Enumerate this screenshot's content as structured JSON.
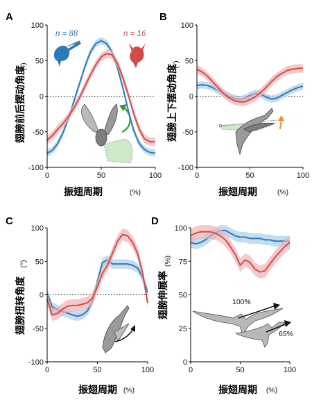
{
  "colors": {
    "hummingbird": "#2b7bb9",
    "hummingbird_band": "#a9cde8",
    "sunbird": "#d24b4b",
    "sunbird_band": "#f0b2b2",
    "arrow_green": "#2e9a2e",
    "arrow_orange": "#f08c2a",
    "illustration_gray": "#9a9a9a"
  },
  "chart_data": [
    {
      "id": "A",
      "panel_label": "A",
      "type": "line",
      "ylabel": "翅膀前后摆动角度",
      "yunit": "(°)",
      "xlabel": "振翅周期",
      "xunit": "(%)",
      "xlim": [
        0,
        100
      ],
      "ylim": [
        -100,
        100
      ],
      "xticks": [
        "0",
        "50",
        "100"
      ],
      "yticks": [
        "100",
        "50",
        "0",
        "-50",
        "-100"
      ],
      "zero_line": true,
      "legend": [
        "n = 88",
        "n = 16"
      ],
      "icons": [
        "hummingbird-icon",
        "sunbird-icon",
        "wing-stroke-illustration"
      ],
      "x": [
        0,
        5,
        10,
        15,
        20,
        25,
        30,
        35,
        40,
        45,
        50,
        55,
        60,
        65,
        70,
        75,
        80,
        85,
        90,
        95,
        100
      ],
      "series": [
        {
          "color": "blue",
          "band": 5,
          "values": [
            -80,
            -76,
            -66,
            -50,
            -30,
            -6,
            18,
            42,
            62,
            74,
            78,
            74,
            62,
            40,
            12,
            -20,
            -48,
            -66,
            -75,
            -79,
            -80
          ]
        },
        {
          "color": "red",
          "band": 6,
          "values": [
            -62,
            -55,
            -46,
            -38,
            -28,
            -16,
            -2,
            14,
            30,
            44,
            55,
            60,
            58,
            46,
            26,
            2,
            -24,
            -46,
            -60,
            -64,
            -64
          ]
        }
      ]
    },
    {
      "id": "B",
      "panel_label": "B",
      "type": "line",
      "ylabel": "翅膀上下摆动角度",
      "yunit": "(°)",
      "xlabel": "振翅周期",
      "xunit": "(%)",
      "xlim": [
        0,
        100
      ],
      "ylim": [
        -100,
        100
      ],
      "xticks": [
        "0",
        "50",
        "100"
      ],
      "yticks": [
        "100",
        "50",
        "0",
        "-50",
        "-100"
      ],
      "zero_line": true,
      "icons": [
        "elevation-illustration"
      ],
      "x": [
        0,
        5,
        10,
        15,
        20,
        25,
        30,
        35,
        40,
        45,
        50,
        55,
        60,
        65,
        70,
        75,
        80,
        85,
        90,
        95,
        100
      ],
      "series": [
        {
          "color": "blue",
          "band": 5,
          "values": [
            15,
            16,
            15,
            12,
            8,
            4,
            0,
            -3,
            -5,
            -3,
            1,
            4,
            3,
            -1,
            -4,
            -3,
            1,
            5,
            9,
            12,
            14
          ]
        },
        {
          "color": "red",
          "band": 6,
          "values": [
            38,
            34,
            28,
            20,
            12,
            4,
            -2,
            -6,
            -8,
            -8,
            -5,
            -1,
            5,
            12,
            20,
            27,
            32,
            36,
            38,
            39,
            39
          ]
        }
      ]
    },
    {
      "id": "C",
      "panel_label": "C",
      "type": "line",
      "ylabel": "翅膀扭转角度",
      "yunit": "(°)",
      "xlabel": "振翅周期",
      "xunit": "(%)",
      "xlim": [
        0,
        100
      ],
      "ylim": [
        -100,
        100
      ],
      "xticks": [
        "0",
        "50",
        "100"
      ],
      "yticks": [
        "100",
        "50",
        "0",
        "-50",
        "-100"
      ],
      "zero_line": true,
      "icons": [
        "twist-illustration"
      ],
      "x": [
        0,
        5,
        10,
        15,
        20,
        25,
        30,
        35,
        40,
        45,
        50,
        55,
        60,
        65,
        70,
        75,
        80,
        85,
        90,
        95,
        100
      ],
      "series": [
        {
          "color": "blue",
          "band": 7,
          "values": [
            2,
            -18,
            -22,
            -25,
            -27,
            -30,
            -32,
            -30,
            -24,
            -10,
            20,
            48,
            52,
            46,
            46,
            46,
            46,
            44,
            40,
            26,
            4
          ]
        },
        {
          "color": "red",
          "band": 9,
          "values": [
            -6,
            -30,
            -28,
            -22,
            -17,
            -16,
            -16,
            -14,
            -12,
            -5,
            12,
            32,
            44,
            62,
            80,
            90,
            88,
            78,
            62,
            32,
            -12
          ]
        }
      ]
    },
    {
      "id": "D",
      "panel_label": "D",
      "type": "line",
      "ylabel": "翅膀伸展率",
      "yunit": "(%)",
      "xlabel": "振翅周期",
      "xunit": "(%)",
      "xlim": [
        0,
        100
      ],
      "ylim": [
        0,
        100
      ],
      "xticks": [
        "0",
        "50",
        "100"
      ],
      "yticks": [
        "100",
        "75",
        "50",
        "25",
        "0"
      ],
      "zero_line": false,
      "annotations": [
        "100%",
        "65%"
      ],
      "icons": [
        "spread-wing-illustration",
        "folded-wing-illustration"
      ],
      "x": [
        0,
        5,
        10,
        15,
        20,
        25,
        30,
        35,
        40,
        45,
        50,
        55,
        60,
        65,
        70,
        75,
        80,
        85,
        90,
        95,
        100
      ],
      "series": [
        {
          "color": "blue",
          "band": 4,
          "values": [
            89,
            88,
            89,
            91,
            94,
            96,
            98,
            98,
            96,
            94,
            93,
            93,
            92,
            92,
            92,
            91,
            91,
            90,
            90,
            90,
            90
          ]
        },
        {
          "color": "red",
          "band": 5,
          "values": [
            94,
            96,
            97,
            97,
            97,
            96,
            94,
            91,
            86,
            80,
            72,
            76,
            74,
            69,
            67,
            68,
            73,
            78,
            82,
            86,
            89
          ]
        }
      ]
    }
  ]
}
